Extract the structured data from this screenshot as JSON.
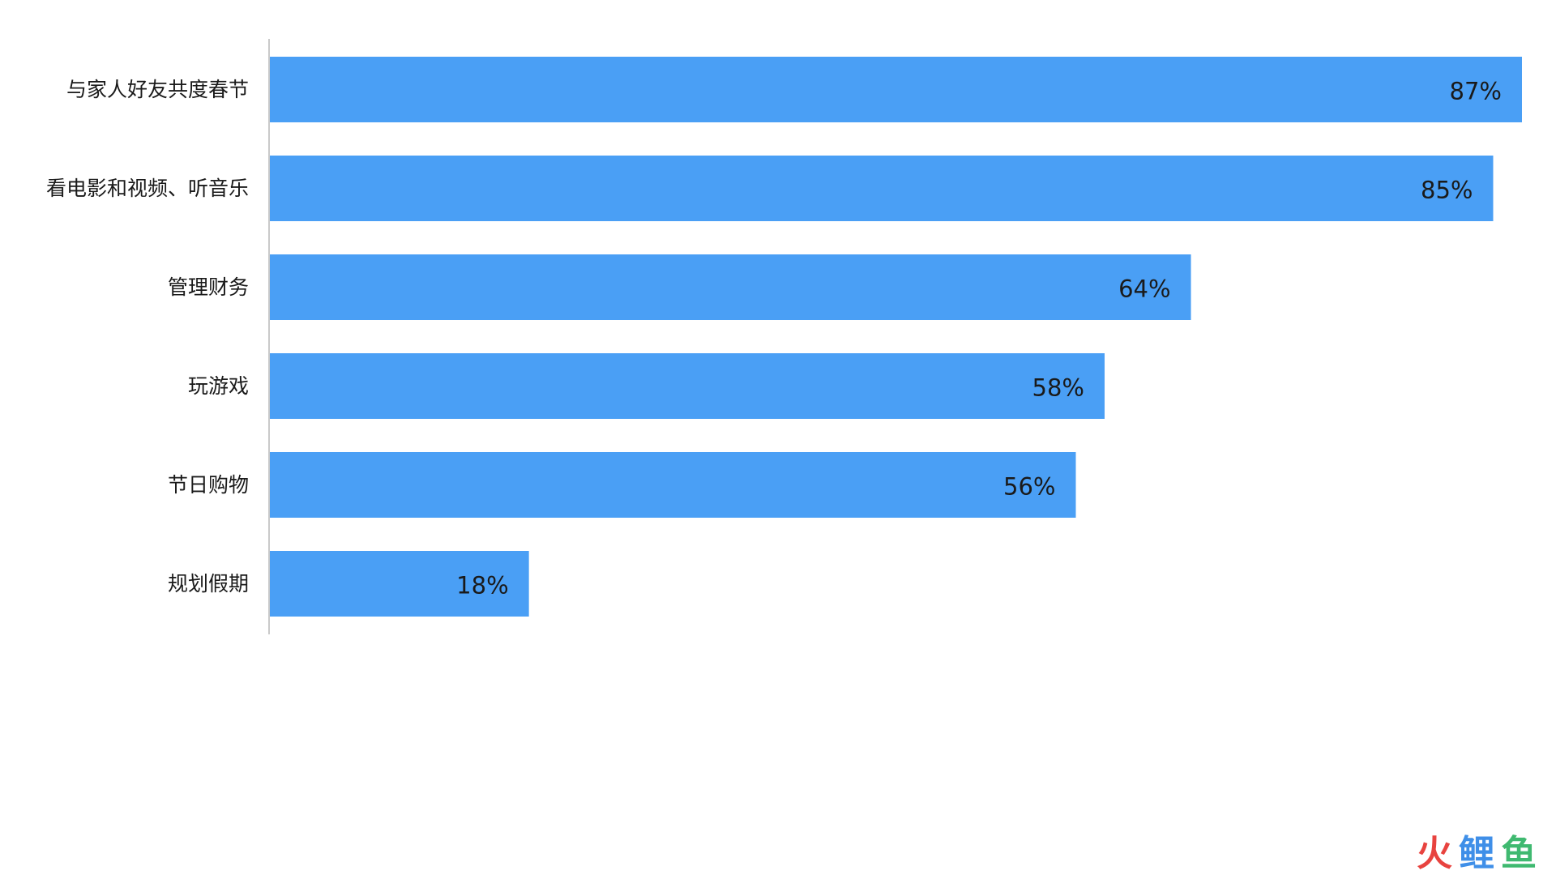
{
  "chart_data": {
    "type": "bar",
    "orientation": "horizontal",
    "categories": [
      "与家人好友共度春节",
      "看电影和视频、听音乐",
      "管理财务",
      "玩游戏",
      "节日购物",
      "规划假期"
    ],
    "values": [
      87,
      85,
      64,
      58,
      56,
      18
    ],
    "value_labels": [
      "87%",
      "85%",
      "64%",
      "58%",
      "56%",
      "18%"
    ],
    "unit": "%",
    "xlim": [
      0,
      87
    ],
    "grid": false,
    "bar_color": "#4a9ff5"
  },
  "watermark": {
    "chars": [
      "火",
      "鲤",
      "鱼"
    ],
    "colors": [
      "#e8433f",
      "#3f8fe8",
      "#3fb970"
    ]
  }
}
